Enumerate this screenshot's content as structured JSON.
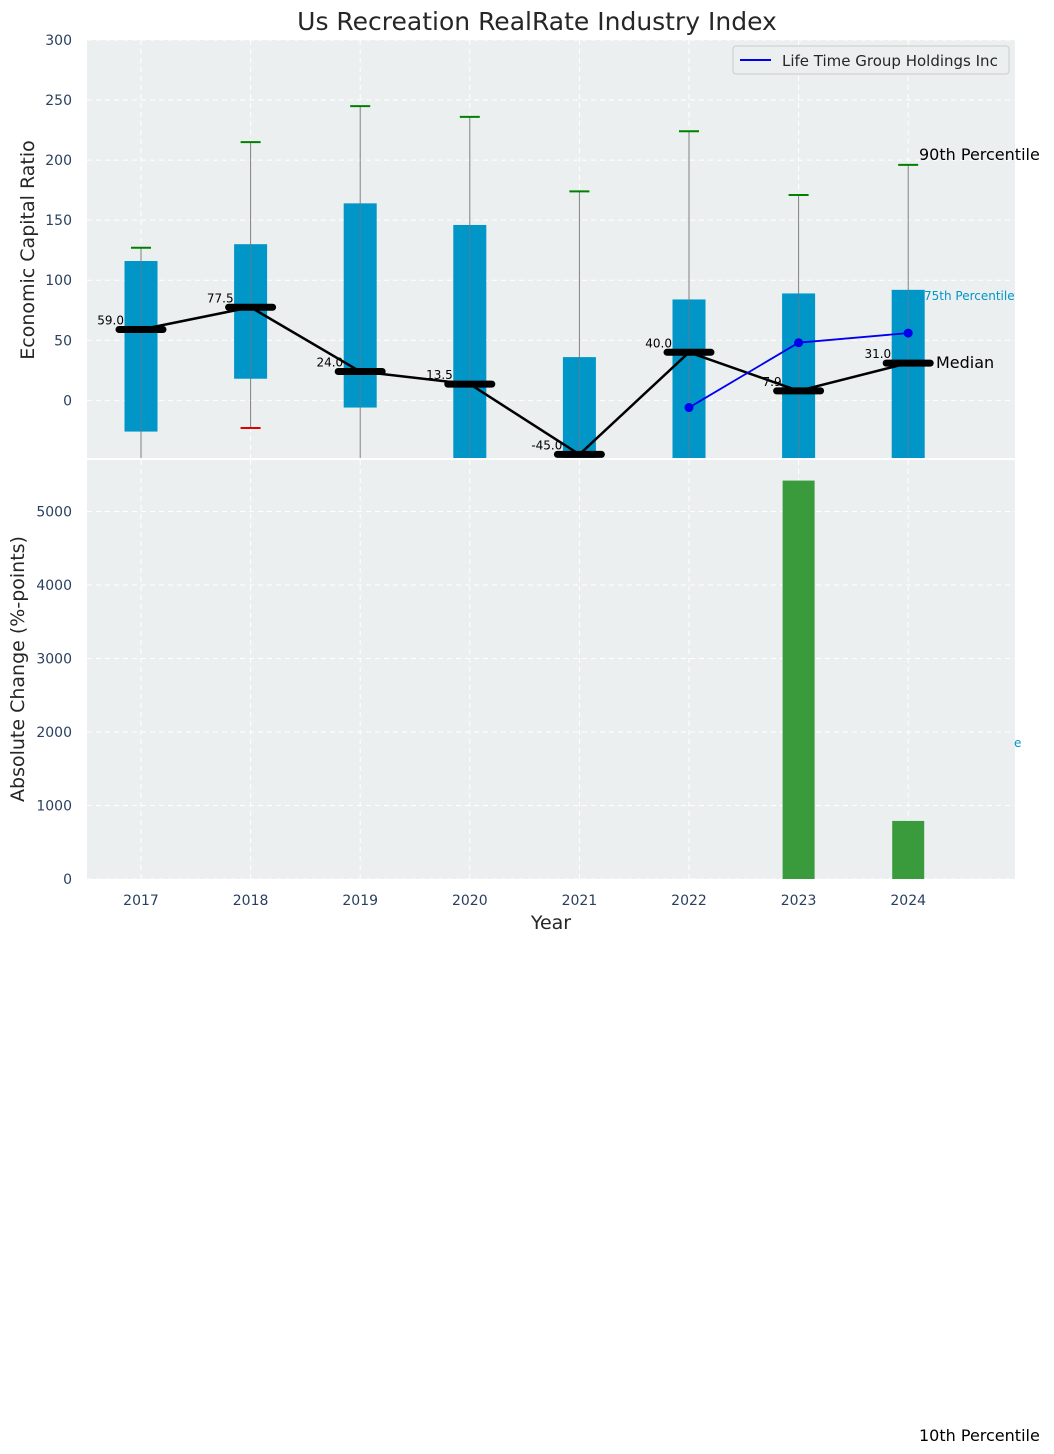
{
  "chart_data": [
    {
      "type": "box",
      "title": "Us Recreation RealRate Industry Index",
      "xlabel": "",
      "ylabel": "Economic Capital Ratio",
      "ylim": [
        -48,
        300
      ],
      "yticks": [
        0,
        50,
        100,
        150,
        200,
        250,
        300
      ],
      "grid": true,
      "categories": [
        "2017",
        "2018",
        "2019",
        "2020",
        "2021",
        "2022",
        "2023",
        "2024"
      ],
      "p90": [
        127,
        215,
        245,
        236,
        174,
        224,
        171,
        196
      ],
      "p75": [
        116,
        130,
        164,
        146,
        36,
        84,
        89,
        92
      ],
      "median": [
        59.0,
        77.5,
        24.0,
        13.5,
        -45.0,
        40.0,
        7.9,
        31.0
      ],
      "median_labels": [
        "59.0",
        "77.5",
        "24.0",
        "13.5",
        "-45.0",
        "40.0",
        "7.9",
        "31.0"
      ],
      "p25": [
        -26,
        18,
        -6,
        -48,
        -48,
        -48,
        -48,
        -48
      ],
      "p10": [
        null,
        -23,
        null,
        null,
        null,
        null,
        null,
        null
      ],
      "series": [
        {
          "name": "Life Time Group Holdings Inc",
          "x": [
            "2022",
            "2023",
            "2024"
          ],
          "values": [
            -6,
            48,
            56
          ],
          "color": "#0000ee"
        }
      ],
      "legend": "top-right",
      "annotations": {
        "p90": "90th Percentile",
        "p75": "75th Percentile",
        "median": "Median",
        "p10": "10th Percentile",
        "clipped": "e"
      }
    },
    {
      "type": "bar",
      "xlabel": "Year",
      "ylabel": "Absolute Change (%-points)",
      "ylim": [
        0,
        5700
      ],
      "yticks": [
        0,
        1000,
        2000,
        3000,
        4000,
        5000
      ],
      "grid": true,
      "categories": [
        "2017",
        "2018",
        "2019",
        "2020",
        "2021",
        "2022",
        "2023",
        "2024"
      ],
      "values": [
        0,
        0,
        0,
        0,
        0,
        0,
        5420,
        790
      ],
      "color": "#3a9b3d"
    }
  ],
  "colors": {
    "panel_bg": "#ebeff0",
    "box": "#0096c8",
    "median": "#000000",
    "p90_cap": "#008000",
    "p10_cap": "#dd0000",
    "company": "#0000ee",
    "bar": "#3a9b3d"
  }
}
